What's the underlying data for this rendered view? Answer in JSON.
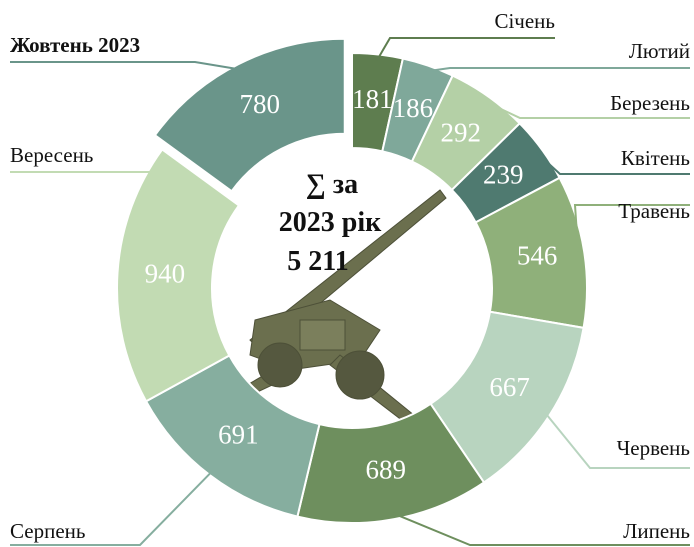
{
  "chart_data": {
    "type": "donut",
    "center_text": [
      "∑ за",
      "2023 рік",
      "5 211"
    ],
    "categories": [
      "Січень",
      "Лютий",
      "Березень",
      "Квітень",
      "Травень",
      "Червень",
      "Липень",
      "Серпень",
      "Вересень",
      "Жовтень 2023"
    ],
    "values": [
      181,
      186,
      292,
      239,
      546,
      667,
      689,
      691,
      940,
      780
    ],
    "colors": [
      "#5e7d4f",
      "#7fa89a",
      "#b4d0a6",
      "#4f7a70",
      "#8fb07a",
      "#b8d4bf",
      "#6e8f5e",
      "#86ae9f",
      "#c2dbb3",
      "#6a958a"
    ],
    "highlight": 9
  }
}
